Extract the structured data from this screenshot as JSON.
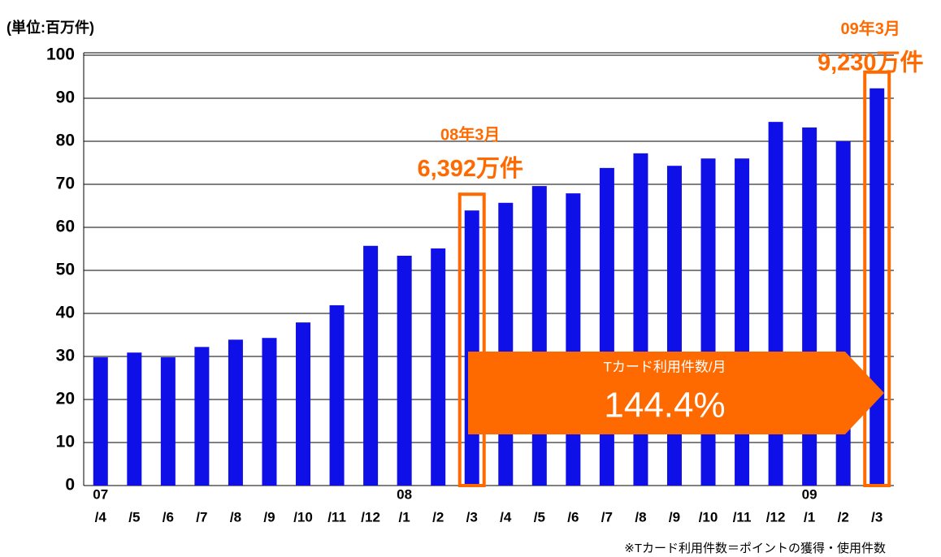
{
  "chart_data": {
    "type": "bar",
    "title": "(単位:百万件)",
    "categories": [
      [
        "07",
        "/4"
      ],
      [
        "/5"
      ],
      [
        "/6"
      ],
      [
        "/7"
      ],
      [
        "/8"
      ],
      [
        "/9"
      ],
      [
        "/10"
      ],
      [
        "/11"
      ],
      [
        "/12"
      ],
      [
        "08",
        "/1"
      ],
      [
        "/2"
      ],
      [
        "/3"
      ],
      [
        "/4"
      ],
      [
        "/5"
      ],
      [
        "/6"
      ],
      [
        "/7"
      ],
      [
        "/8"
      ],
      [
        "/9"
      ],
      [
        "/10"
      ],
      [
        "/11"
      ],
      [
        "/12"
      ],
      [
        "09",
        "/1"
      ],
      [
        "/2"
      ],
      [
        "/3"
      ]
    ],
    "values": [
      29.8,
      30.9,
      29.8,
      32.2,
      33.9,
      34.3,
      37.9,
      41.9,
      55.7,
      53.4,
      55.1,
      63.92,
      65.7,
      69.6,
      67.9,
      73.8,
      77.2,
      74.3,
      76.0,
      76.0,
      84.5,
      83.2,
      80.0,
      92.3
    ],
    "value_labels": [
      null,
      null,
      null,
      null,
      null,
      null,
      null,
      null,
      null,
      null,
      null,
      "6,392万件",
      null,
      null,
      null,
      null,
      null,
      null,
      null,
      null,
      null,
      null,
      null,
      "9,230万件"
    ],
    "value_label_titles": [
      null,
      null,
      null,
      null,
      null,
      null,
      null,
      null,
      null,
      null,
      null,
      "08年3月",
      null,
      null,
      null,
      null,
      null,
      null,
      null,
      null,
      null,
      null,
      null,
      "09年3月"
    ],
    "color": "#0f0fe8",
    "highlight_color": "#ff6a00",
    "ylim": [
      0,
      100
    ],
    "yticks": [
      0,
      10,
      20,
      30,
      40,
      50,
      60,
      70,
      80,
      90,
      100
    ],
    "grid": true,
    "arrow": {
      "title": "Tカード利用件数/月",
      "value": "144.4%"
    },
    "footnote": "※Tカード利用件数＝ポイントの獲得・使用件数"
  }
}
